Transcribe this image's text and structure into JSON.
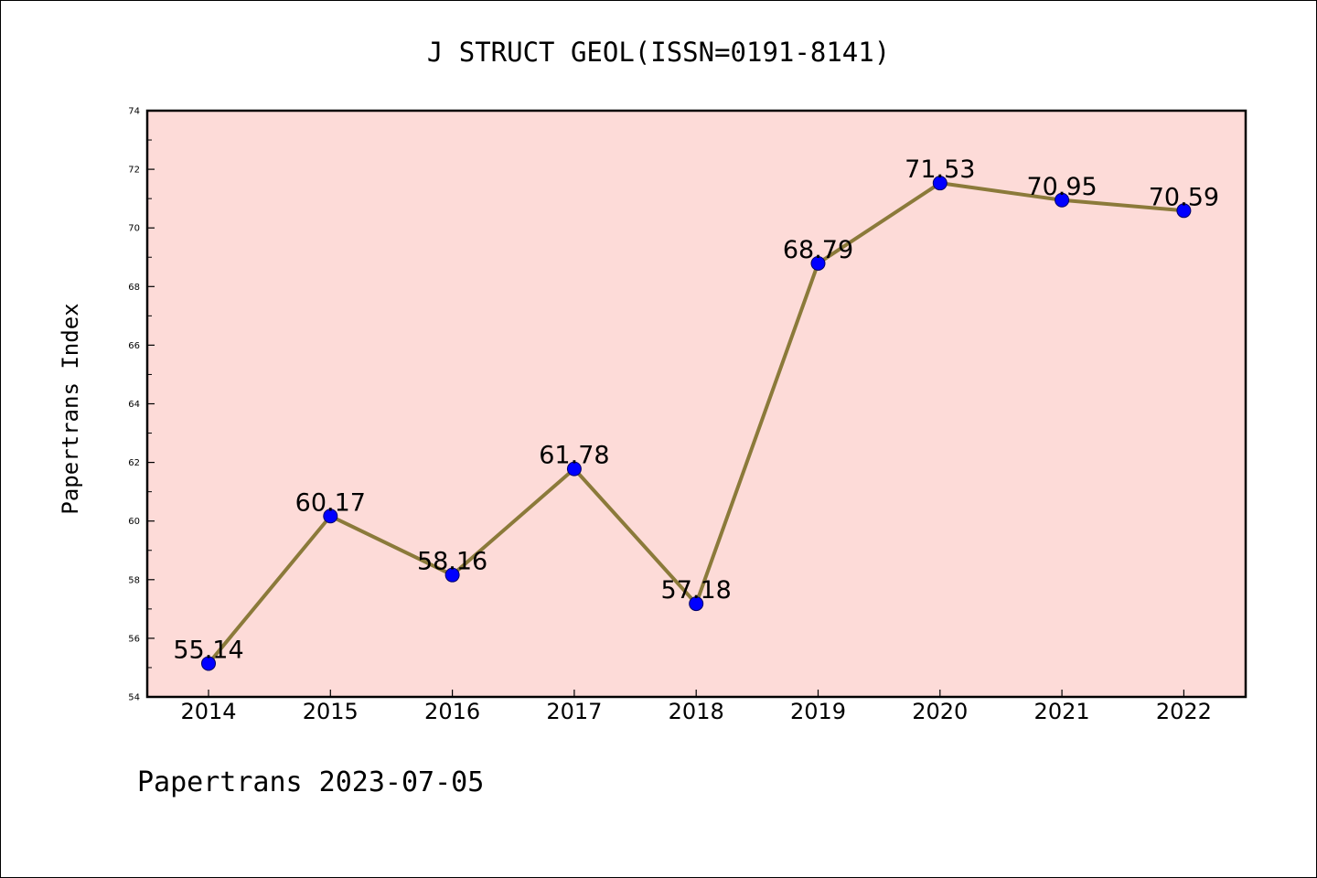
{
  "footer": "Papertrans 2023-07-05",
  "colors": {
    "plot_background": "#fddbd8",
    "line": "#8b7a3a",
    "marker": "#0000ff",
    "axis": "#000000"
  },
  "chart_data": {
    "type": "line",
    "title": "J STRUCT GEOL(ISSN=0191-8141)",
    "xlabel": "",
    "ylabel": "Papertrans Index",
    "x": [
      "2014",
      "2015",
      "2016",
      "2017",
      "2018",
      "2019",
      "2020",
      "2021",
      "2022"
    ],
    "series": [
      {
        "values": [
          55.14,
          60.17,
          58.16,
          61.78,
          57.18,
          68.79,
          71.53,
          70.95,
          70.59
        ],
        "labels": [
          "55.14",
          "60.17",
          "58.16",
          "61.78",
          "57.18",
          "68.79",
          "71.53",
          "70.95",
          "70.59"
        ]
      }
    ],
    "ylim": [
      54,
      74
    ],
    "yticks": [
      "54",
      "56",
      "58",
      "60",
      "62",
      "64",
      "66",
      "68",
      "70",
      "72",
      "74"
    ],
    "grid": false,
    "legend": "none"
  }
}
